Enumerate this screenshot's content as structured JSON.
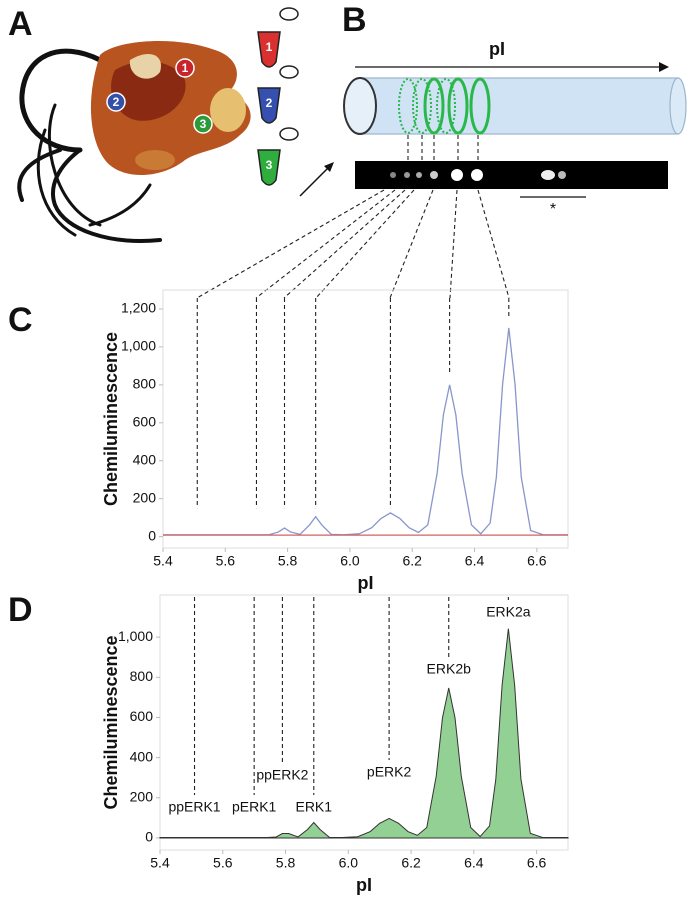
{
  "panel_labels": [
    "A",
    "B",
    "C",
    "D"
  ],
  "samples": [
    "1",
    "2",
    "3"
  ],
  "gel": {
    "axis_label": "pI",
    "note": "*"
  },
  "chart_data": [
    {
      "type": "line",
      "x_label": "pI",
      "y_label": "Chemiluminescence",
      "xlim": [
        5.4,
        6.7
      ],
      "ylim": [
        -60,
        1300
      ],
      "xticks": [
        5.4,
        5.6,
        5.8,
        {
          "value": 6,
          "label": "6.0"
        },
        6.2,
        6.4,
        6.6
      ],
      "yticks": [
        0,
        200,
        400,
        600,
        800,
        {
          "value": 1000,
          "label": "1,000"
        },
        {
          "value": 1200,
          "label": "1,200"
        }
      ],
      "x": [
        5.4,
        5.45,
        5.5,
        5.55,
        5.6,
        5.65,
        5.7,
        5.74,
        5.77,
        5.79,
        5.81,
        5.84,
        5.87,
        5.89,
        5.91,
        5.94,
        5.98,
        6.03,
        6.07,
        6.1,
        6.13,
        6.16,
        6.19,
        6.22,
        6.25,
        6.28,
        6.3,
        6.32,
        6.34,
        6.36,
        6.39,
        6.42,
        6.45,
        6.47,
        6.49,
        6.51,
        6.53,
        6.55,
        6.58,
        6.62,
        6.66,
        6.7
      ],
      "series": [
        {
          "color": "#8896cc",
          "values": [
            10,
            10,
            10,
            10,
            10,
            10,
            10,
            10,
            24,
            45,
            24,
            12,
            61,
            105,
            61,
            12,
            10,
            15,
            47,
            96,
            125,
            96,
            47,
            22,
            62,
            334,
            642,
            800,
            642,
            334,
            62,
            15,
            71,
            313,
            802,
            1100,
            802,
            313,
            32,
            10,
            10,
            10
          ]
        },
        {
          "color": "#d46060",
          "values": [
            8,
            8,
            8,
            8,
            8,
            8,
            8,
            8,
            8,
            8,
            8,
            8,
            8,
            8,
            8,
            8,
            8,
            8,
            8,
            8,
            8,
            8,
            8,
            8,
            8,
            8,
            8,
            8,
            8,
            8,
            8,
            8,
            8,
            8,
            8,
            8,
            8,
            8,
            8,
            8,
            8,
            8
          ]
        }
      ],
      "markers_x": [
        5.51,
        5.7,
        5.79,
        5.89,
        6.13,
        6.32,
        6.51
      ]
    },
    {
      "type": "area",
      "x_label": "pI",
      "y_label": "Chemiluminescence",
      "xlim": [
        5.4,
        6.7
      ],
      "ylim": [
        -60,
        1210
      ],
      "xticks": [
        5.4,
        5.6,
        5.8,
        {
          "value": 6,
          "label": "6.0"
        },
        6.2,
        6.4,
        6.6
      ],
      "yticks": [
        0,
        200,
        400,
        600,
        800,
        {
          "value": 1000,
          "label": "1,000"
        }
      ],
      "x": [
        5.4,
        5.45,
        5.5,
        5.55,
        5.6,
        5.65,
        5.7,
        5.74,
        5.77,
        5.79,
        5.81,
        5.84,
        5.87,
        5.89,
        5.91,
        5.94,
        5.98,
        6.03,
        6.07,
        6.1,
        6.13,
        6.16,
        6.19,
        6.22,
        6.25,
        6.28,
        6.3,
        6.32,
        6.34,
        6.36,
        6.39,
        6.42,
        6.45,
        6.47,
        6.49,
        6.51,
        6.53,
        6.55,
        6.58,
        6.62,
        6.66,
        6.7
      ],
      "series": [
        {
          "color": "#93d093",
          "values": [
            2,
            2,
            2,
            2,
            2,
            2,
            2,
            2,
            5,
            22,
            22,
            5,
            42,
            77,
            42,
            3,
            2,
            6,
            32,
            73,
            97,
            73,
            32,
            13,
            52,
            307,
            598,
            747,
            598,
            307,
            52,
            7,
            60,
            293,
            761,
            1042,
            761,
            293,
            23,
            2,
            2,
            2
          ]
        }
      ],
      "annotations": [
        {
          "text": "ppERK1",
          "x": 5.51
        },
        {
          "text": "pERK1",
          "x": 5.7
        },
        {
          "text": "ppERK2",
          "x": 5.79
        },
        {
          "text": "ERK1",
          "x": 5.89
        },
        {
          "text": "pERK2",
          "x": 6.13
        },
        {
          "text": "ERK2b",
          "x": 6.32
        },
        {
          "text": "ERK2a",
          "x": 6.51
        }
      ]
    }
  ]
}
